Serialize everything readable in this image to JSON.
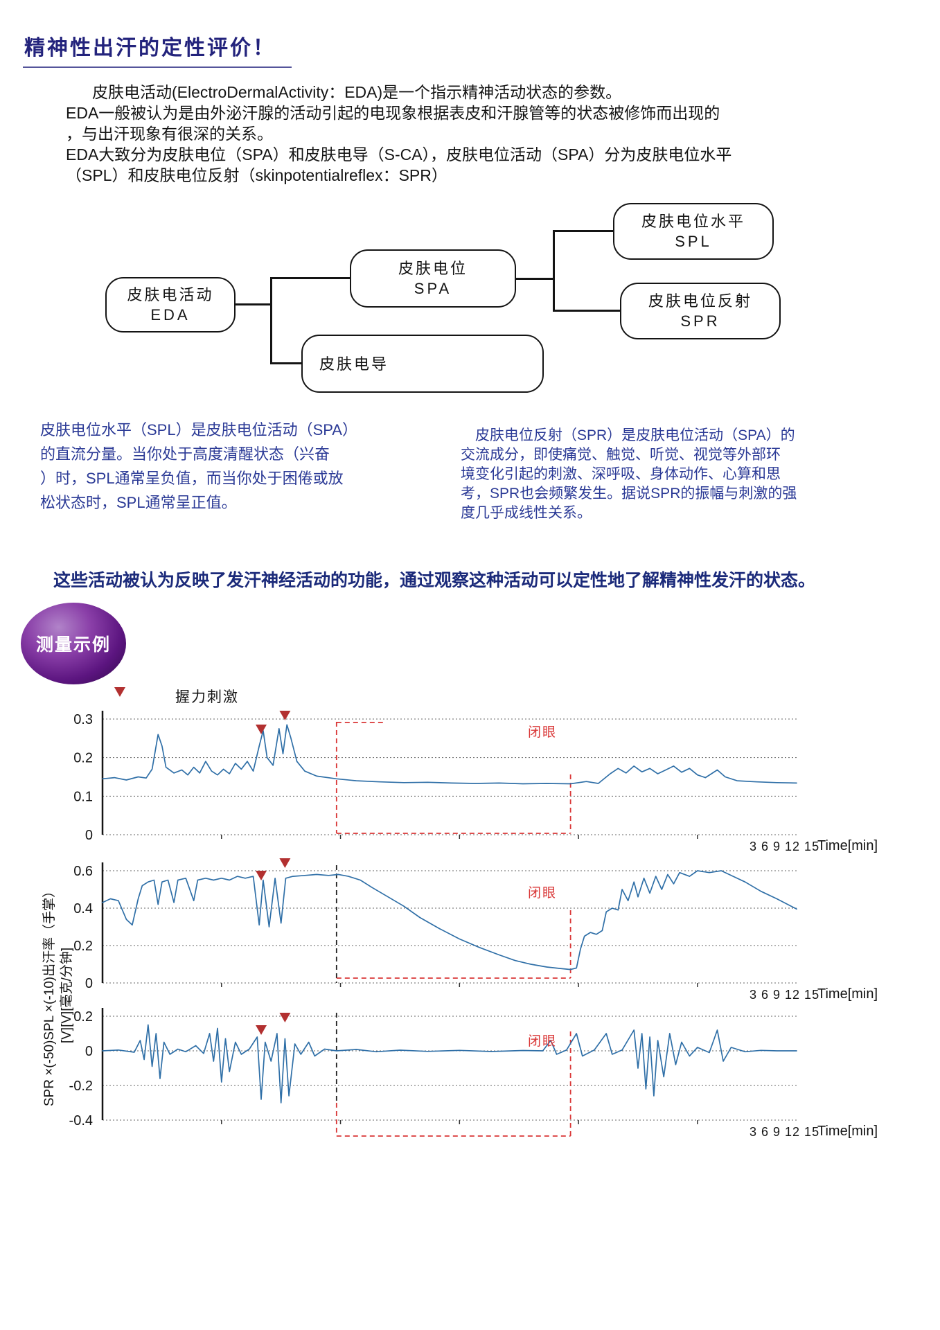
{
  "page": {
    "title": "精神性出汗的定性评价！",
    "intro_lines": [
      "皮肤电活动(ElectroDermalActivity：EDA)是一个指示精神活动状态的参数。",
      "EDA一般被认为是由外泌汗腺的活动引起的电现象根据表皮和汗腺管等的状态被修饰而出现的",
      "，与出汗现象有很深的关系。",
      "EDA大致分为皮肤电位（SPA）和皮肤电导（S-CA），皮肤电位活动（SPA）分为皮肤电位水平",
      "（SPL）和皮肤电位反射（skinpotentialreflex：SPR）"
    ],
    "flowchart": {
      "eda": {
        "line1": "皮肤电活动",
        "line2": "EDA"
      },
      "spa": {
        "line1": "皮肤电位",
        "line2": "SPA"
      },
      "scl": {
        "label": "皮肤电导"
      },
      "spl": {
        "line1": "皮肤电位水平",
        "line2": "SPL"
      },
      "spr": {
        "line1": "皮肤电位反射",
        "line2": "SPR"
      }
    },
    "left_column_lines": [
      "皮肤电位水平（SPL）是皮肤电位活动（SPA）",
      "的直流分量。当你处于高度清醒状态（兴奋",
      "）时，SPL通常呈负值，而当你处于困倦或放",
      "松状态时，SPL通常呈正值。"
    ],
    "right_column_lines": [
      "　皮肤电位反射（SPR）是皮肤电位活动（SPA）的",
      "交流成分，即使痛觉、触觉、听觉、视觉等外部环",
      "境变化引起的刺激、深呼吸、身体动作、心算和思",
      "考，SPR也会频繁发生。据说SPR的振幅与刺激的强",
      "度几乎成线性关系。"
    ],
    "highlight": "这些活动被认为反映了发汗神经活动的功能，通过观察这种活动可以定性地了解精神性发汗的状态。",
    "badge": "测量示例",
    "grip_label": "握力刺激",
    "closed_eye_label": "闭眼",
    "time_axis": {
      "ticks_text": "3 6 9 12 15",
      "label": "Time[min]"
    },
    "y_axis_label_line1": "SPR ×(-50)SPL ×(-10)出汗率（手掌）",
    "y_axis_label_line2": "[V][V][毫克/分钟]",
    "colors": {
      "title_navy": "#23237c",
      "column_blue": "#2b3a96",
      "line_blue": "#2f6fa7",
      "dashed_red": "#d93636",
      "triangle_red": "#b23030",
      "badge_purple": "#5c1580"
    }
  },
  "chart_data": [
    {
      "type": "line",
      "title": "出汗率（手掌）",
      "ylabel": "出汗率（手掌）[毫克/分钟]",
      "xlabel": "Time[min]",
      "xticks": [
        3,
        6,
        9,
        12,
        15
      ],
      "x_max_min": 17.5,
      "ylim": [
        0,
        0.3
      ],
      "yticks": [
        "0.3",
        "0.2",
        "0.1",
        "0"
      ],
      "grid": true,
      "closed_eye_interval_min": [
        5.9,
        11.8
      ],
      "closed_eye_label": "闭眼",
      "stim_marks_min": [
        4.0,
        4.6
      ],
      "series": [
        {
          "name": "出汗率（手掌）",
          "color": "#2f6fa7",
          "points": [
            [
              0,
              0.145
            ],
            [
              0.3,
              0.148
            ],
            [
              0.6,
              0.142
            ],
            [
              0.9,
              0.15
            ],
            [
              1.1,
              0.147
            ],
            [
              1.25,
              0.17
            ],
            [
              1.4,
              0.26
            ],
            [
              1.5,
              0.23
            ],
            [
              1.6,
              0.175
            ],
            [
              1.8,
              0.16
            ],
            [
              2.0,
              0.168
            ],
            [
              2.15,
              0.155
            ],
            [
              2.3,
              0.175
            ],
            [
              2.45,
              0.16
            ],
            [
              2.6,
              0.19
            ],
            [
              2.75,
              0.165
            ],
            [
              2.9,
              0.155
            ],
            [
              3.05,
              0.17
            ],
            [
              3.2,
              0.158
            ],
            [
              3.35,
              0.185
            ],
            [
              3.5,
              0.17
            ],
            [
              3.65,
              0.19
            ],
            [
              3.8,
              0.165
            ],
            [
              3.95,
              0.23
            ],
            [
              4.05,
              0.27
            ],
            [
              4.15,
              0.2
            ],
            [
              4.3,
              0.18
            ],
            [
              4.45,
              0.275
            ],
            [
              4.55,
              0.21
            ],
            [
              4.65,
              0.285
            ],
            [
              4.75,
              0.25
            ],
            [
              4.9,
              0.19
            ],
            [
              5.1,
              0.165
            ],
            [
              5.4,
              0.152
            ],
            [
              5.9,
              0.145
            ],
            [
              6.4,
              0.14
            ],
            [
              7.0,
              0.137
            ],
            [
              7.6,
              0.135
            ],
            [
              8.2,
              0.136
            ],
            [
              8.8,
              0.134
            ],
            [
              9.4,
              0.133
            ],
            [
              10.0,
              0.134
            ],
            [
              10.6,
              0.132
            ],
            [
              11.2,
              0.133
            ],
            [
              11.8,
              0.132
            ],
            [
              12.2,
              0.138
            ],
            [
              12.5,
              0.133
            ],
            [
              12.8,
              0.158
            ],
            [
              13.0,
              0.172
            ],
            [
              13.2,
              0.16
            ],
            [
              13.4,
              0.178
            ],
            [
              13.6,
              0.163
            ],
            [
              13.8,
              0.172
            ],
            [
              14.0,
              0.158
            ],
            [
              14.2,
              0.168
            ],
            [
              14.4,
              0.178
            ],
            [
              14.6,
              0.162
            ],
            [
              14.8,
              0.172
            ],
            [
              15.0,
              0.155
            ],
            [
              15.2,
              0.148
            ],
            [
              15.5,
              0.168
            ],
            [
              15.7,
              0.15
            ],
            [
              16.0,
              0.14
            ],
            [
              16.5,
              0.137
            ],
            [
              17.0,
              0.135
            ],
            [
              17.5,
              0.134
            ]
          ]
        }
      ]
    },
    {
      "type": "line",
      "title": "SPL ×(-10)",
      "ylabel": "SPL ×(-10) [V]",
      "xlabel": "Time[min]",
      "xticks": [
        3,
        6,
        9,
        12,
        15
      ],
      "x_max_min": 17.5,
      "ylim": [
        0,
        0.6
      ],
      "yticks": [
        "0.6",
        "0.4",
        "0.2",
        "0"
      ],
      "grid": true,
      "closed_eye_interval_min": [
        5.9,
        11.8
      ],
      "closed_eye_label": "闭眼",
      "stim_marks_min": [
        4.0,
        4.6
      ],
      "series": [
        {
          "name": "SPL ×(-10)",
          "color": "#2f6fa7",
          "points": [
            [
              0,
              0.43
            ],
            [
              0.2,
              0.45
            ],
            [
              0.4,
              0.44
            ],
            [
              0.6,
              0.34
            ],
            [
              0.75,
              0.31
            ],
            [
              0.9,
              0.45
            ],
            [
              1.0,
              0.52
            ],
            [
              1.15,
              0.54
            ],
            [
              1.3,
              0.55
            ],
            [
              1.4,
              0.42
            ],
            [
              1.5,
              0.54
            ],
            [
              1.65,
              0.55
            ],
            [
              1.8,
              0.43
            ],
            [
              1.9,
              0.55
            ],
            [
              2.1,
              0.56
            ],
            [
              2.3,
              0.44
            ],
            [
              2.4,
              0.55
            ],
            [
              2.6,
              0.56
            ],
            [
              2.8,
              0.55
            ],
            [
              3.0,
              0.56
            ],
            [
              3.2,
              0.55
            ],
            [
              3.4,
              0.57
            ],
            [
              3.6,
              0.56
            ],
            [
              3.8,
              0.57
            ],
            [
              3.95,
              0.31
            ],
            [
              4.05,
              0.55
            ],
            [
              4.2,
              0.3
            ],
            [
              4.35,
              0.56
            ],
            [
              4.5,
              0.32
            ],
            [
              4.62,
              0.56
            ],
            [
              4.8,
              0.57
            ],
            [
              5.1,
              0.575
            ],
            [
              5.4,
              0.58
            ],
            [
              5.7,
              0.575
            ],
            [
              5.95,
              0.58
            ],
            [
              6.2,
              0.57
            ],
            [
              6.5,
              0.55
            ],
            [
              6.8,
              0.51
            ],
            [
              7.2,
              0.46
            ],
            [
              7.6,
              0.41
            ],
            [
              8.0,
              0.35
            ],
            [
              8.5,
              0.29
            ],
            [
              9.0,
              0.235
            ],
            [
              9.5,
              0.19
            ],
            [
              10.0,
              0.15
            ],
            [
              10.4,
              0.12
            ],
            [
              10.8,
              0.1
            ],
            [
              11.2,
              0.085
            ],
            [
              11.5,
              0.078
            ],
            [
              11.8,
              0.072
            ],
            [
              11.95,
              0.08
            ],
            [
              12.05,
              0.18
            ],
            [
              12.15,
              0.25
            ],
            [
              12.3,
              0.27
            ],
            [
              12.45,
              0.26
            ],
            [
              12.6,
              0.28
            ],
            [
              12.7,
              0.38
            ],
            [
              12.85,
              0.4
            ],
            [
              13.0,
              0.39
            ],
            [
              13.1,
              0.5
            ],
            [
              13.25,
              0.44
            ],
            [
              13.4,
              0.54
            ],
            [
              13.5,
              0.46
            ],
            [
              13.65,
              0.56
            ],
            [
              13.8,
              0.48
            ],
            [
              13.95,
              0.57
            ],
            [
              14.1,
              0.5
            ],
            [
              14.25,
              0.58
            ],
            [
              14.4,
              0.53
            ],
            [
              14.55,
              0.59
            ],
            [
              14.8,
              0.57
            ],
            [
              15.0,
              0.6
            ],
            [
              15.3,
              0.59
            ],
            [
              15.6,
              0.6
            ],
            [
              15.9,
              0.57
            ],
            [
              16.2,
              0.54
            ],
            [
              16.6,
              0.49
            ],
            [
              17.0,
              0.45
            ],
            [
              17.5,
              0.395
            ]
          ]
        }
      ]
    },
    {
      "type": "line",
      "title": "SPR ×(-50)",
      "ylabel": "SPR ×(-50) [V]",
      "xlabel": "Time[min]",
      "xticks": [
        3,
        6,
        9,
        12,
        15
      ],
      "x_max_min": 17.5,
      "ylim": [
        -0.4,
        0.2
      ],
      "yticks": [
        "0.2",
        "0",
        "-0.2",
        "-0.4"
      ],
      "grid": true,
      "closed_eye_interval_min": [
        5.9,
        11.8
      ],
      "closed_eye_label": "闭眼",
      "stim_marks_min": [
        4.0,
        4.6
      ],
      "series": [
        {
          "name": "SPR ×(-50)",
          "color": "#2f6fa7",
          "points": [
            [
              0,
              0
            ],
            [
              0.4,
              0.005
            ],
            [
              0.8,
              -0.008
            ],
            [
              0.95,
              0.06
            ],
            [
              1.05,
              -0.05
            ],
            [
              1.15,
              0.15
            ],
            [
              1.25,
              -0.09
            ],
            [
              1.35,
              0.1
            ],
            [
              1.45,
              -0.16
            ],
            [
              1.55,
              0.05
            ],
            [
              1.7,
              -0.02
            ],
            [
              1.9,
              0.01
            ],
            [
              2.1,
              -0.005
            ],
            [
              2.35,
              0.03
            ],
            [
              2.55,
              -0.015
            ],
            [
              2.7,
              0.1
            ],
            [
              2.8,
              -0.06
            ],
            [
              2.9,
              0.13
            ],
            [
              3.0,
              -0.18
            ],
            [
              3.1,
              0.07
            ],
            [
              3.2,
              -0.12
            ],
            [
              3.35,
              0.05
            ],
            [
              3.5,
              -0.02
            ],
            [
              3.7,
              0.01
            ],
            [
              3.9,
              0.08
            ],
            [
              4.0,
              -0.28
            ],
            [
              4.1,
              0.05
            ],
            [
              4.25,
              -0.06
            ],
            [
              4.4,
              0.1
            ],
            [
              4.5,
              -0.3
            ],
            [
              4.6,
              0.07
            ],
            [
              4.7,
              -0.26
            ],
            [
              4.85,
              0.04
            ],
            [
              5.0,
              -0.02
            ],
            [
              5.2,
              0.05
            ],
            [
              5.35,
              -0.03
            ],
            [
              5.6,
              0.01
            ],
            [
              5.9,
              0
            ],
            [
              6.4,
              0.008
            ],
            [
              6.9,
              -0.005
            ],
            [
              7.5,
              0.004
            ],
            [
              8.2,
              -0.003
            ],
            [
              9.0,
              0.003
            ],
            [
              9.8,
              -0.004
            ],
            [
              10.6,
              0.002
            ],
            [
              11.1,
              0
            ],
            [
              11.3,
              0.06
            ],
            [
              11.45,
              -0.02
            ],
            [
              11.7,
              0.005
            ],
            [
              11.95,
              0.1
            ],
            [
              12.1,
              -0.03
            ],
            [
              12.4,
              0.005
            ],
            [
              12.7,
              0.1
            ],
            [
              12.85,
              -0.02
            ],
            [
              13.1,
              0.005
            ],
            [
              13.4,
              0.12
            ],
            [
              13.5,
              -0.1
            ],
            [
              13.6,
              0.1
            ],
            [
              13.7,
              -0.22
            ],
            [
              13.8,
              0.08
            ],
            [
              13.9,
              -0.26
            ],
            [
              14.0,
              0.06
            ],
            [
              14.15,
              -0.15
            ],
            [
              14.3,
              0.1
            ],
            [
              14.45,
              -0.08
            ],
            [
              14.6,
              0.05
            ],
            [
              14.8,
              -0.03
            ],
            [
              15.0,
              0.02
            ],
            [
              15.3,
              -0.01
            ],
            [
              15.5,
              0.12
            ],
            [
              15.65,
              -0.06
            ],
            [
              15.85,
              0.02
            ],
            [
              16.2,
              -0.005
            ],
            [
              16.6,
              0.003
            ],
            [
              17.0,
              0
            ],
            [
              17.5,
              0
            ]
          ]
        }
      ]
    }
  ]
}
